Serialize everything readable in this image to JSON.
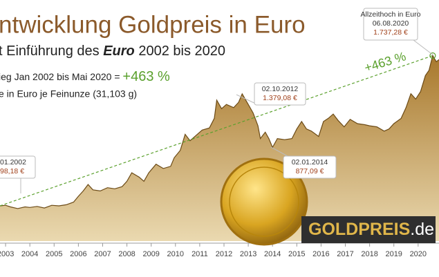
{
  "chart_data": {
    "type": "area",
    "title": "ntwicklung Goldpreis in Euro",
    "subtitle_parts": [
      "t Einführung des ",
      "Euro",
      " 2002 bis 2020"
    ],
    "gain_text": "ieg Jan 2002 bis Mai 2020 = ",
    "gain_value": "+463 %",
    "unit_text": "e in Euro je Feinunze (31,103 g)",
    "trend_label": "+463 %",
    "callouts": [
      {
        "date": "01.2002",
        "price": "98,18 €"
      },
      {
        "date": "02.10.2012",
        "price": "1.379,08 €"
      },
      {
        "date": "02.01.2014",
        "price": "877,09 €"
      },
      {
        "heading": "Allzeithoch in Euro",
        "date": "06.08.2020",
        "price": "1.737,28 €"
      }
    ],
    "x": [
      2002.77,
      2003.0,
      2003.2,
      2003.5,
      2003.8,
      2004.0,
      2004.3,
      2004.6,
      2004.9,
      2005.2,
      2005.5,
      2005.8,
      2006.0,
      2006.2,
      2006.4,
      2006.6,
      2006.9,
      2007.2,
      2007.5,
      2007.8,
      2008.0,
      2008.2,
      2008.5,
      2008.7,
      2008.9,
      2009.2,
      2009.5,
      2009.8,
      2009.95,
      2010.2,
      2010.4,
      2010.6,
      2010.9,
      2011.1,
      2011.4,
      2011.6,
      2011.7,
      2011.9,
      2012.1,
      2012.4,
      2012.6,
      2012.75,
      2013.0,
      2013.2,
      2013.4,
      2013.5,
      2013.7,
      2013.85,
      2014.0,
      2014.2,
      2014.5,
      2014.8,
      2015.0,
      2015.2,
      2015.4,
      2015.6,
      2015.9,
      2016.1,
      2016.3,
      2016.5,
      2016.7,
      2016.95,
      2017.2,
      2017.5,
      2017.8,
      2018.0,
      2018.3,
      2018.6,
      2018.8,
      2019.0,
      2019.3,
      2019.5,
      2019.7,
      2019.9,
      2020.1,
      2020.3,
      2020.45,
      2020.6,
      2020.75,
      2020.86
    ],
    "values": [
      330,
      335,
      320,
      305,
      320,
      315,
      325,
      310,
      335,
      330,
      340,
      365,
      420,
      470,
      530,
      480,
      470,
      500,
      490,
      510,
      560,
      640,
      600,
      560,
      640,
      720,
      680,
      700,
      780,
      850,
      1000,
      940,
      1000,
      1040,
      1060,
      1150,
      1320,
      1240,
      1280,
      1250,
      1300,
      1379,
      1280,
      1200,
      1080,
      960,
      1020,
      960,
      877,
      960,
      950,
      960,
      1050,
      1120,
      1050,
      1030,
      980,
      1120,
      1150,
      1190,
      1130,
      1070,
      1140,
      1100,
      1090,
      1080,
      1070,
      1030,
      1050,
      1100,
      1150,
      1250,
      1380,
      1330,
      1400,
      1550,
      1600,
      1737,
      1680,
      1700
    ],
    "color": "#b08a3e",
    "trend_color": "#5aa02c",
    "xlim": [
      2002.77,
      2020.86
    ],
    "ylim": [
      0,
      2258
    ],
    "xticks": [
      2003,
      2004,
      2005,
      2006,
      2007,
      2008,
      2009,
      2010,
      2011,
      2012,
      2013,
      2014,
      2015,
      2016,
      2017,
      2018,
      2019,
      2020
    ]
  },
  "logo": {
    "main": "GOLDPREIS",
    "suffix": ".de"
  }
}
